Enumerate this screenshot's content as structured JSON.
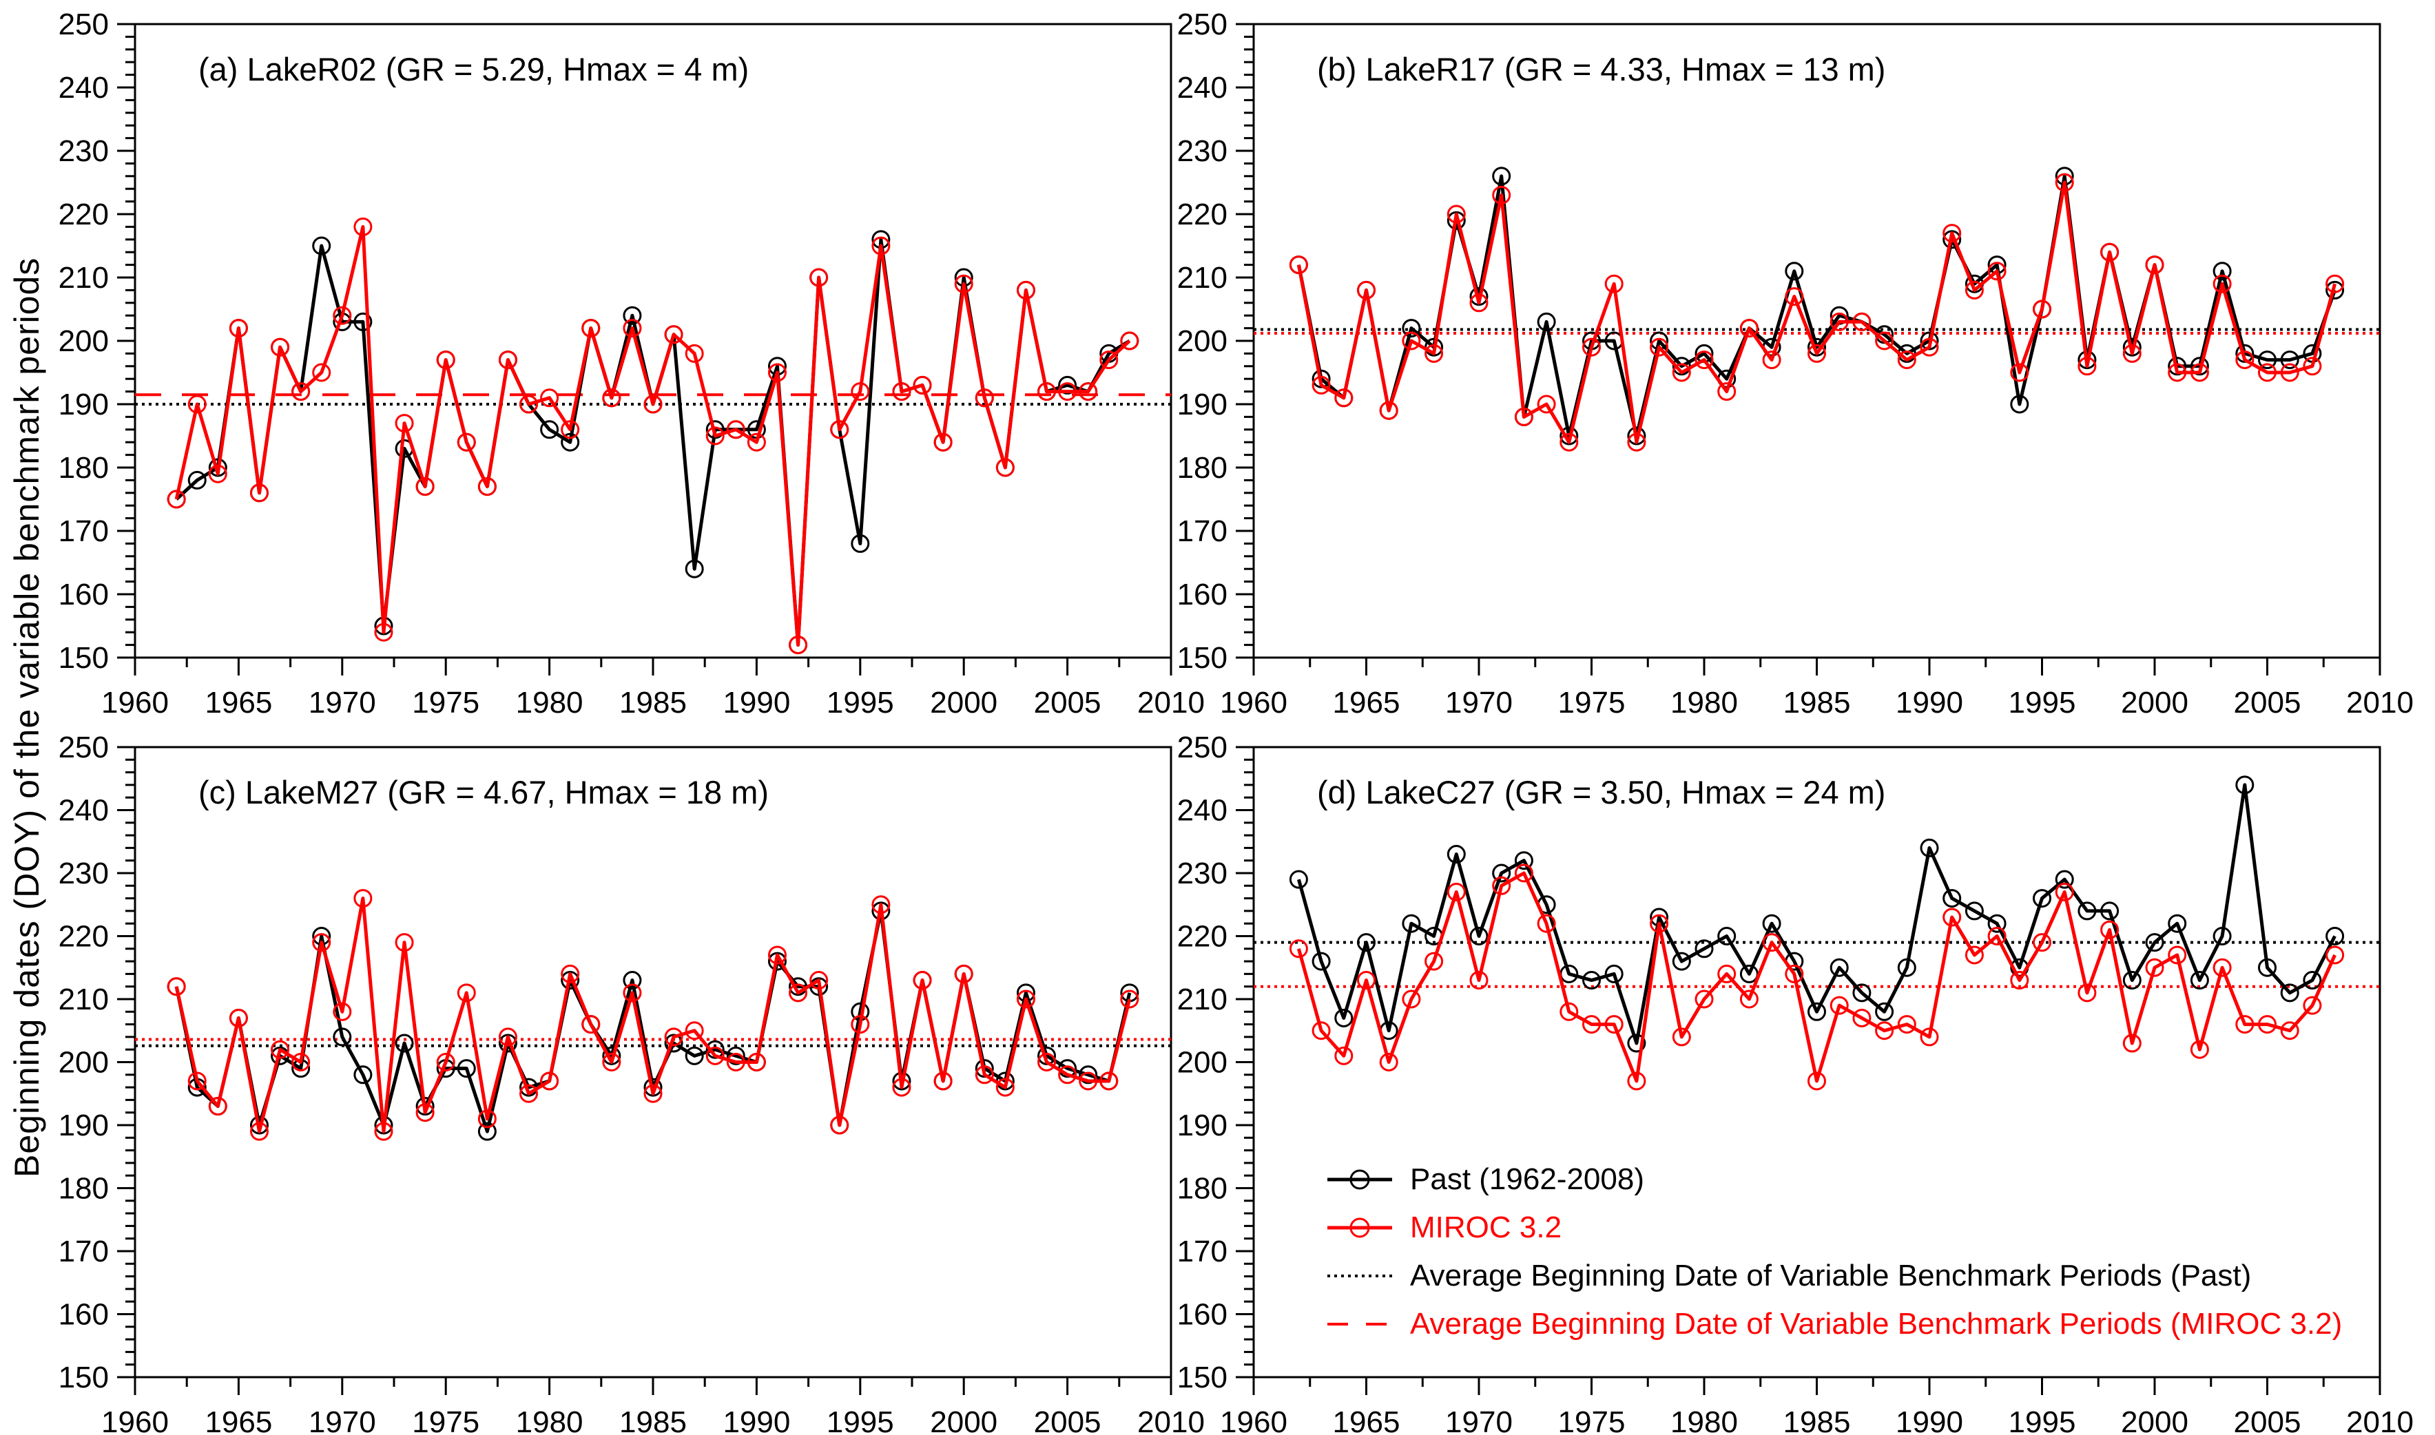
{
  "figure": {
    "y_axis_label": "Beginning dates (DOY) of the variable benchmark periods",
    "colors": {
      "past": "#000000",
      "miroc": "#ff0000",
      "background": "#ffffff"
    },
    "x_axis": {
      "min": 1960,
      "max": 2010,
      "major_step": 5,
      "minor_step": 2.5,
      "tick_labels": [
        "1960",
        "1965",
        "1970",
        "1975",
        "1980",
        "1985",
        "1990",
        "1995",
        "2000",
        "2005",
        "2010"
      ]
    },
    "y_axis": {
      "min": 150,
      "max": 250,
      "major_step": 10,
      "minor_step": 2,
      "tick_labels": [
        "150",
        "160",
        "170",
        "180",
        "190",
        "200",
        "210",
        "220",
        "230",
        "240",
        "250"
      ]
    },
    "legend": {
      "past": "Past (1962-2008)",
      "miroc": "MIROC 3.2",
      "avg_past": "Average Beginning Date of Variable Benchmark Periods (Past)",
      "avg_miroc": "Average Beginning Date of Variable Benchmark Periods (MIROC 3.2)"
    }
  },
  "chart_data": [
    {
      "id": "a",
      "type": "line",
      "title": "(a) LakeR02 (GR = 5.29, Hmax = 4 m)",
      "xlabel": "",
      "ylabel": "Beginning dates (DOY) of the variable benchmark periods",
      "xlim": [
        1960,
        2010
      ],
      "ylim": [
        150,
        250
      ],
      "grid": false,
      "legend_position": "none",
      "x": [
        1962,
        1963,
        1964,
        1965,
        1966,
        1967,
        1968,
        1969,
        1970,
        1971,
        1972,
        1973,
        1974,
        1975,
        1976,
        1977,
        1978,
        1979,
        1980,
        1981,
        1982,
        1983,
        1984,
        1985,
        1986,
        1987,
        1988,
        1989,
        1990,
        1991,
        1992,
        1993,
        1994,
        1995,
        1996,
        1997,
        1998,
        1999,
        2000,
        2001,
        2002,
        2003,
        2004,
        2005,
        2006,
        2007,
        2008
      ],
      "series": [
        {
          "name": "Past (1962-2008)",
          "values": [
            175,
            178,
            180,
            202,
            176,
            199,
            192,
            215,
            203,
            203,
            155,
            183,
            177,
            197,
            184,
            177,
            197,
            190,
            186,
            184,
            202,
            191,
            204,
            190,
            201,
            164,
            186,
            186,
            186,
            196,
            152,
            210,
            186,
            168,
            216,
            192,
            193,
            184,
            210,
            191,
            180,
            208,
            192,
            193,
            192,
            198,
            200
          ]
        },
        {
          "name": "MIROC 3.2",
          "values": [
            175,
            190,
            179,
            202,
            176,
            199,
            192,
            195,
            204,
            218,
            154,
            187,
            177,
            197,
            184,
            177,
            197,
            190,
            191,
            186,
            202,
            191,
            202,
            190,
            201,
            198,
            185,
            186,
            184,
            195,
            152,
            210,
            186,
            192,
            215,
            192,
            193,
            184,
            209,
            191,
            180,
            208,
            192,
            192,
            192,
            197,
            200
          ]
        }
      ],
      "avg_past": 190.0,
      "avg_miroc": 191.5
    },
    {
      "id": "b",
      "type": "line",
      "title": "(b) LakeR17 (GR = 4.33, Hmax = 13 m)",
      "xlabel": "",
      "ylabel": "Beginning dates (DOY) of the variable benchmark periods",
      "xlim": [
        1960,
        2010
      ],
      "ylim": [
        150,
        250
      ],
      "grid": false,
      "legend_position": "none",
      "x": [
        1962,
        1963,
        1964,
        1965,
        1966,
        1967,
        1968,
        1969,
        1970,
        1971,
        1972,
        1973,
        1974,
        1975,
        1976,
        1977,
        1978,
        1979,
        1980,
        1981,
        1982,
        1983,
        1984,
        1985,
        1986,
        1987,
        1988,
        1989,
        1990,
        1991,
        1992,
        1993,
        1994,
        1995,
        1996,
        1997,
        1998,
        1999,
        2000,
        2001,
        2002,
        2003,
        2004,
        2005,
        2006,
        2007,
        2008
      ],
      "series": [
        {
          "name": "Past (1962-2008)",
          "values": [
            212,
            194,
            191,
            208,
            189,
            202,
            199,
            219,
            207,
            226,
            188,
            203,
            185,
            200,
            200,
            185,
            200,
            196,
            198,
            194,
            202,
            199,
            211,
            199,
            204,
            203,
            201,
            198,
            200,
            216,
            209,
            212,
            190,
            205,
            226,
            197,
            214,
            199,
            212,
            196,
            196,
            211,
            198,
            197,
            197,
            198,
            208
          ]
        },
        {
          "name": "MIROC 3.2",
          "values": [
            212,
            193,
            191,
            208,
            189,
            200,
            198,
            220,
            206,
            223,
            188,
            190,
            184,
            199,
            209,
            184,
            199,
            195,
            197,
            192,
            202,
            197,
            207,
            198,
            203,
            203,
            200,
            197,
            199,
            217,
            208,
            211,
            195,
            205,
            225,
            196,
            214,
            198,
            212,
            195,
            195,
            209,
            197,
            195,
            195,
            196,
            209
          ]
        }
      ],
      "avg_past": 201.8,
      "avg_miroc": 201.2
    },
    {
      "id": "c",
      "type": "line",
      "title": "(c) LakeM27 (GR = 4.67, Hmax = 18 m)",
      "xlabel": "",
      "ylabel": "Beginning dates (DOY) of the variable benchmark periods",
      "xlim": [
        1960,
        2010
      ],
      "ylim": [
        150,
        250
      ],
      "grid": false,
      "legend_position": "none",
      "x": [
        1962,
        1963,
        1964,
        1965,
        1966,
        1967,
        1968,
        1969,
        1970,
        1971,
        1972,
        1973,
        1974,
        1975,
        1976,
        1977,
        1978,
        1979,
        1980,
        1981,
        1982,
        1983,
        1984,
        1985,
        1986,
        1987,
        1988,
        1989,
        1990,
        1991,
        1992,
        1993,
        1994,
        1995,
        1996,
        1997,
        1998,
        1999,
        2000,
        2001,
        2002,
        2003,
        2004,
        2005,
        2006,
        2007,
        2008
      ],
      "series": [
        {
          "name": "Past (1962-2008)",
          "values": [
            212,
            196,
            193,
            207,
            190,
            201,
            199,
            220,
            204,
            198,
            190,
            203,
            193,
            199,
            199,
            189,
            203,
            196,
            197,
            213,
            206,
            201,
            213,
            196,
            203,
            201,
            202,
            201,
            200,
            216,
            212,
            212,
            190,
            208,
            224,
            197,
            213,
            197,
            214,
            199,
            197,
            211,
            201,
            199,
            198,
            197,
            211
          ]
        },
        {
          "name": "MIROC 3.2",
          "values": [
            212,
            197,
            193,
            207,
            189,
            202,
            200,
            219,
            208,
            226,
            189,
            219,
            192,
            200,
            211,
            191,
            204,
            195,
            197,
            214,
            206,
            200,
            211,
            195,
            204,
            205,
            201,
            200,
            200,
            217,
            211,
            213,
            190,
            206,
            225,
            196,
            213,
            197,
            214,
            198,
            196,
            210,
            200,
            198,
            197,
            197,
            210
          ]
        }
      ],
      "avg_past": 202.6,
      "avg_miroc": 203.6
    },
    {
      "id": "d",
      "type": "line",
      "title": "(d) LakeC27 (GR = 3.50, Hmax = 24 m)",
      "xlabel": "",
      "ylabel": "Beginning dates (DOY) of the variable benchmark periods",
      "xlim": [
        1960,
        2010
      ],
      "ylim": [
        150,
        250
      ],
      "grid": false,
      "legend_position": "inside-bottom-left",
      "x": [
        1962,
        1963,
        1964,
        1965,
        1966,
        1967,
        1968,
        1969,
        1970,
        1971,
        1972,
        1973,
        1974,
        1975,
        1976,
        1977,
        1978,
        1979,
        1980,
        1981,
        1982,
        1983,
        1984,
        1985,
        1986,
        1987,
        1988,
        1989,
        1990,
        1991,
        1992,
        1993,
        1994,
        1995,
        1996,
        1997,
        1998,
        1999,
        2000,
        2001,
        2002,
        2003,
        2004,
        2005,
        2006,
        2007,
        2008
      ],
      "series": [
        {
          "name": "Past (1962-2008)",
          "values": [
            229,
            216,
            207,
            219,
            205,
            222,
            220,
            233,
            220,
            230,
            232,
            225,
            214,
            213,
            214,
            203,
            223,
            216,
            218,
            220,
            214,
            222,
            216,
            208,
            215,
            211,
            208,
            215,
            234,
            226,
            224,
            222,
            215,
            226,
            229,
            224,
            224,
            213,
            219,
            222,
            213,
            220,
            244,
            215,
            211,
            213,
            220
          ]
        },
        {
          "name": "MIROC 3.2",
          "values": [
            218,
            205,
            201,
            213,
            200,
            210,
            216,
            227,
            213,
            228,
            230,
            222,
            208,
            206,
            206,
            197,
            222,
            204,
            210,
            214,
            210,
            219,
            214,
            197,
            209,
            207,
            205,
            206,
            204,
            223,
            217,
            220,
            213,
            219,
            227,
            211,
            221,
            203,
            215,
            217,
            202,
            215,
            206,
            206,
            205,
            209,
            217
          ]
        }
      ],
      "avg_past": 219.0,
      "avg_miroc": 212.0
    }
  ]
}
